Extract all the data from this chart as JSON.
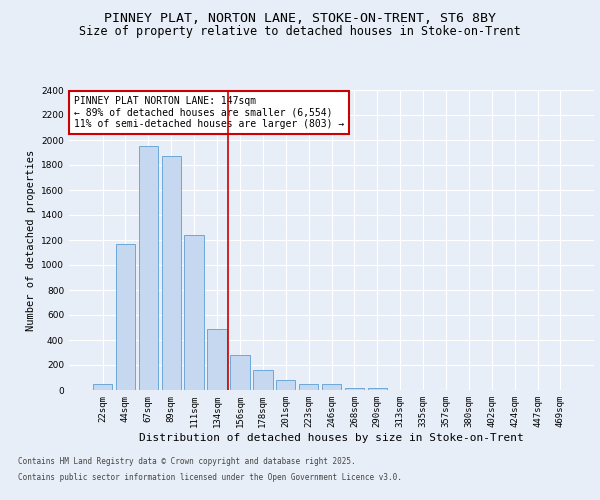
{
  "title1": "PINNEY PLAT, NORTON LANE, STOKE-ON-TRENT, ST6 8BY",
  "title2": "Size of property relative to detached houses in Stoke-on-Trent",
  "xlabel": "Distribution of detached houses by size in Stoke-on-Trent",
  "ylabel": "Number of detached properties",
  "categories": [
    "22sqm",
    "44sqm",
    "67sqm",
    "89sqm",
    "111sqm",
    "134sqm",
    "156sqm",
    "178sqm",
    "201sqm",
    "223sqm",
    "246sqm",
    "268sqm",
    "290sqm",
    "313sqm",
    "335sqm",
    "357sqm",
    "380sqm",
    "402sqm",
    "424sqm",
    "447sqm",
    "469sqm"
  ],
  "values": [
    50,
    1170,
    1950,
    1870,
    1240,
    490,
    280,
    160,
    80,
    50,
    50,
    20,
    20,
    0,
    0,
    0,
    0,
    0,
    0,
    0,
    0
  ],
  "bar_color": "#c5d8f0",
  "bar_edge_color": "#5a9fd4",
  "red_line_x": 5.5,
  "annotation_text": "PINNEY PLAT NORTON LANE: 147sqm\n← 89% of detached houses are smaller (6,554)\n11% of semi-detached houses are larger (803) →",
  "annotation_box_color": "#ffffff",
  "annotation_box_edge_color": "#cc0000",
  "red_line_color": "#cc0000",
  "ylim_max": 2400,
  "yticks": [
    0,
    200,
    400,
    600,
    800,
    1000,
    1200,
    1400,
    1600,
    1800,
    2000,
    2200,
    2400
  ],
  "footer1": "Contains HM Land Registry data © Crown copyright and database right 2025.",
  "footer2": "Contains public sector information licensed under the Open Government Licence v3.0.",
  "bg_color": "#e8eef7",
  "grid_color": "#ffffff",
  "title_fontsize": 9.5,
  "subtitle_fontsize": 8.5,
  "tick_fontsize": 6.5,
  "ylabel_fontsize": 7.5,
  "xlabel_fontsize": 8,
  "annotation_fontsize": 7,
  "footer_fontsize": 5.5
}
